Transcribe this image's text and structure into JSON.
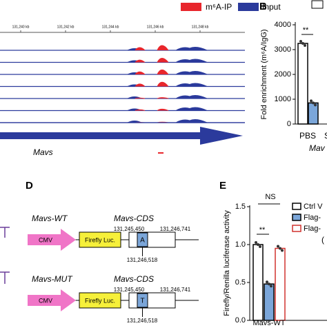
{
  "panel_a": {
    "legend": [
      "m⁶A-IP",
      "Input"
    ],
    "scale_labels": [
      "131,240 kb",
      "131,242 kb",
      "131,244 kb",
      "131,246 kb",
      "131,248 kb"
    ],
    "gene": "Mavs"
  },
  "panel_b": {
    "label": "B",
    "y_label": "Fold enrichment (m⁶A/IgG)",
    "ylim": [
      0,
      4000
    ],
    "yticks": [
      0,
      1000,
      2000,
      3000,
      4000
    ],
    "bars": [
      {
        "value": 3250,
        "color": "#ffffff"
      },
      {
        "value": 850,
        "color": "#7ba6d9"
      }
    ],
    "significance": "**",
    "x_labels": [
      "PBS",
      "S"
    ],
    "group": "Mav"
  },
  "panel_d": {
    "label": "D",
    "promoter": "CMV",
    "reporter": "Firefly Luc.",
    "constructs": [
      {
        "name": "Mavs-WT",
        "cds": "Mavs-CDS",
        "start": "131,245,450",
        "end": "131,246,741",
        "site": "131,246,518",
        "base": "A"
      },
      {
        "name": "Mavs-MUT",
        "cds": "Mavs-CDS",
        "start": "131,245,450",
        "end": "131,246,741",
        "site": "131,246,518",
        "base": "T"
      }
    ]
  },
  "panel_e": {
    "label": "E",
    "y_label": "Firefly/Renilla luciferase activity",
    "ylim": [
      0,
      1.5
    ],
    "yticks": [
      {
        "value": 0,
        "label": "0.0"
      },
      {
        "value": 0.5,
        "label": "0.5"
      },
      {
        "value": 1,
        "label": "1.0"
      },
      {
        "value": 1.5,
        "label": "1.5"
      }
    ],
    "bars": [
      {
        "value": 1.0,
        "color": "#ffffff",
        "edge": "#000000"
      },
      {
        "value": 0.48,
        "color": "#7ba6d9",
        "edge": "#000000"
      },
      {
        "value": 0.95,
        "color": "#ffffff",
        "edge": "#d0312d"
      }
    ],
    "legend": [
      "Ctrl V",
      "Flag-",
      "Flag-"
    ],
    "annotations": [
      "NS",
      "**"
    ],
    "x_label": "Mavs-WT"
  }
}
